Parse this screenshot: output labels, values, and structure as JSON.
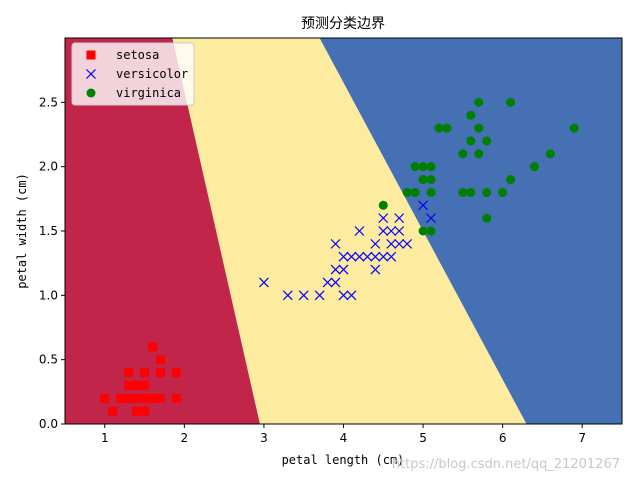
{
  "chart_data": {
    "type": "scatter",
    "title": "预测分类边界",
    "xlabel": "petal length (cm)",
    "ylabel": "petal width (cm)",
    "xlim": [
      0.5,
      7.5
    ],
    "ylim": [
      0.0,
      3.0
    ],
    "xticks": [
      1,
      2,
      3,
      4,
      5,
      6,
      7
    ],
    "yticks": [
      0.0,
      0.5,
      1.0,
      1.5,
      2.0,
      2.5
    ],
    "ytick_labels": [
      "0.0",
      "0.5",
      "1.0",
      "1.5",
      "2.0",
      "2.5"
    ],
    "grid": false,
    "legend_position": "top-left",
    "regions": [
      {
        "name": "setosa",
        "color": "#c1264a",
        "polygon": [
          [
            0.5,
            0.0
          ],
          [
            2.95,
            0.0
          ],
          [
            1.85,
            3.0
          ],
          [
            0.5,
            3.0
          ]
        ]
      },
      {
        "name": "versicolor",
        "color": "#fdeba0",
        "polygon": [
          [
            2.95,
            0.0
          ],
          [
            6.3,
            0.0
          ],
          [
            3.7,
            3.0
          ],
          [
            1.85,
            3.0
          ]
        ]
      },
      {
        "name": "virginica",
        "color": "#4570b4",
        "polygon": [
          [
            6.3,
            0.0
          ],
          [
            7.5,
            0.0
          ],
          [
            7.5,
            3.0
          ],
          [
            3.7,
            3.0
          ]
        ]
      }
    ],
    "series": [
      {
        "name": "setosa",
        "marker": "square",
        "color": "#ff0000",
        "points": [
          [
            1.0,
            0.2
          ],
          [
            1.2,
            0.2
          ],
          [
            1.3,
            0.2
          ],
          [
            1.4,
            0.2
          ],
          [
            1.5,
            0.2
          ],
          [
            1.6,
            0.2
          ],
          [
            1.7,
            0.2
          ],
          [
            1.9,
            0.2
          ],
          [
            1.4,
            0.1
          ],
          [
            1.5,
            0.1
          ],
          [
            1.1,
            0.1
          ],
          [
            1.3,
            0.3
          ],
          [
            1.4,
            0.3
          ],
          [
            1.5,
            0.3
          ],
          [
            1.3,
            0.4
          ],
          [
            1.5,
            0.4
          ],
          [
            1.7,
            0.4
          ],
          [
            1.9,
            0.4
          ],
          [
            1.6,
            0.6
          ],
          [
            1.7,
            0.5
          ]
        ]
      },
      {
        "name": "versicolor",
        "marker": "x",
        "color": "#0000ff",
        "points": [
          [
            3.0,
            1.1
          ],
          [
            3.3,
            1.0
          ],
          [
            3.5,
            1.0
          ],
          [
            3.7,
            1.0
          ],
          [
            3.8,
            1.1
          ],
          [
            3.9,
            1.1
          ],
          [
            3.9,
            1.2
          ],
          [
            3.9,
            1.4
          ],
          [
            4.0,
            1.0
          ],
          [
            4.0,
            1.2
          ],
          [
            4.0,
            1.3
          ],
          [
            4.1,
            1.0
          ],
          [
            4.1,
            1.3
          ],
          [
            4.2,
            1.3
          ],
          [
            4.2,
            1.5
          ],
          [
            4.3,
            1.3
          ],
          [
            4.4,
            1.2
          ],
          [
            4.4,
            1.3
          ],
          [
            4.4,
            1.4
          ],
          [
            4.5,
            1.3
          ],
          [
            4.5,
            1.5
          ],
          [
            4.5,
            1.6
          ],
          [
            4.6,
            1.3
          ],
          [
            4.6,
            1.4
          ],
          [
            4.6,
            1.5
          ],
          [
            4.7,
            1.4
          ],
          [
            4.7,
            1.5
          ],
          [
            4.7,
            1.6
          ],
          [
            4.8,
            1.4
          ],
          [
            5.0,
            1.7
          ],
          [
            5.1,
            1.6
          ]
        ]
      },
      {
        "name": "virginica",
        "marker": "circle",
        "color": "#008000",
        "points": [
          [
            4.5,
            1.7
          ],
          [
            4.8,
            1.8
          ],
          [
            4.9,
            1.8
          ],
          [
            4.9,
            2.0
          ],
          [
            5.0,
            1.5
          ],
          [
            5.0,
            1.9
          ],
          [
            5.0,
            2.0
          ],
          [
            5.1,
            1.5
          ],
          [
            5.1,
            1.8
          ],
          [
            5.1,
            1.9
          ],
          [
            5.1,
            2.0
          ],
          [
            5.2,
            2.3
          ],
          [
            5.3,
            2.3
          ],
          [
            5.5,
            1.8
          ],
          [
            5.5,
            2.1
          ],
          [
            5.6,
            1.8
          ],
          [
            5.6,
            2.2
          ],
          [
            5.6,
            2.4
          ],
          [
            5.7,
            2.1
          ],
          [
            5.7,
            2.3
          ],
          [
            5.7,
            2.5
          ],
          [
            5.8,
            1.6
          ],
          [
            5.8,
            1.8
          ],
          [
            5.8,
            2.2
          ],
          [
            6.0,
            1.8
          ],
          [
            6.1,
            1.9
          ],
          [
            6.1,
            2.5
          ],
          [
            6.4,
            2.0
          ],
          [
            6.6,
            2.1
          ],
          [
            6.9,
            2.3
          ]
        ]
      }
    ],
    "watermark": "https://blog.csdn.net/qq_21201267"
  }
}
